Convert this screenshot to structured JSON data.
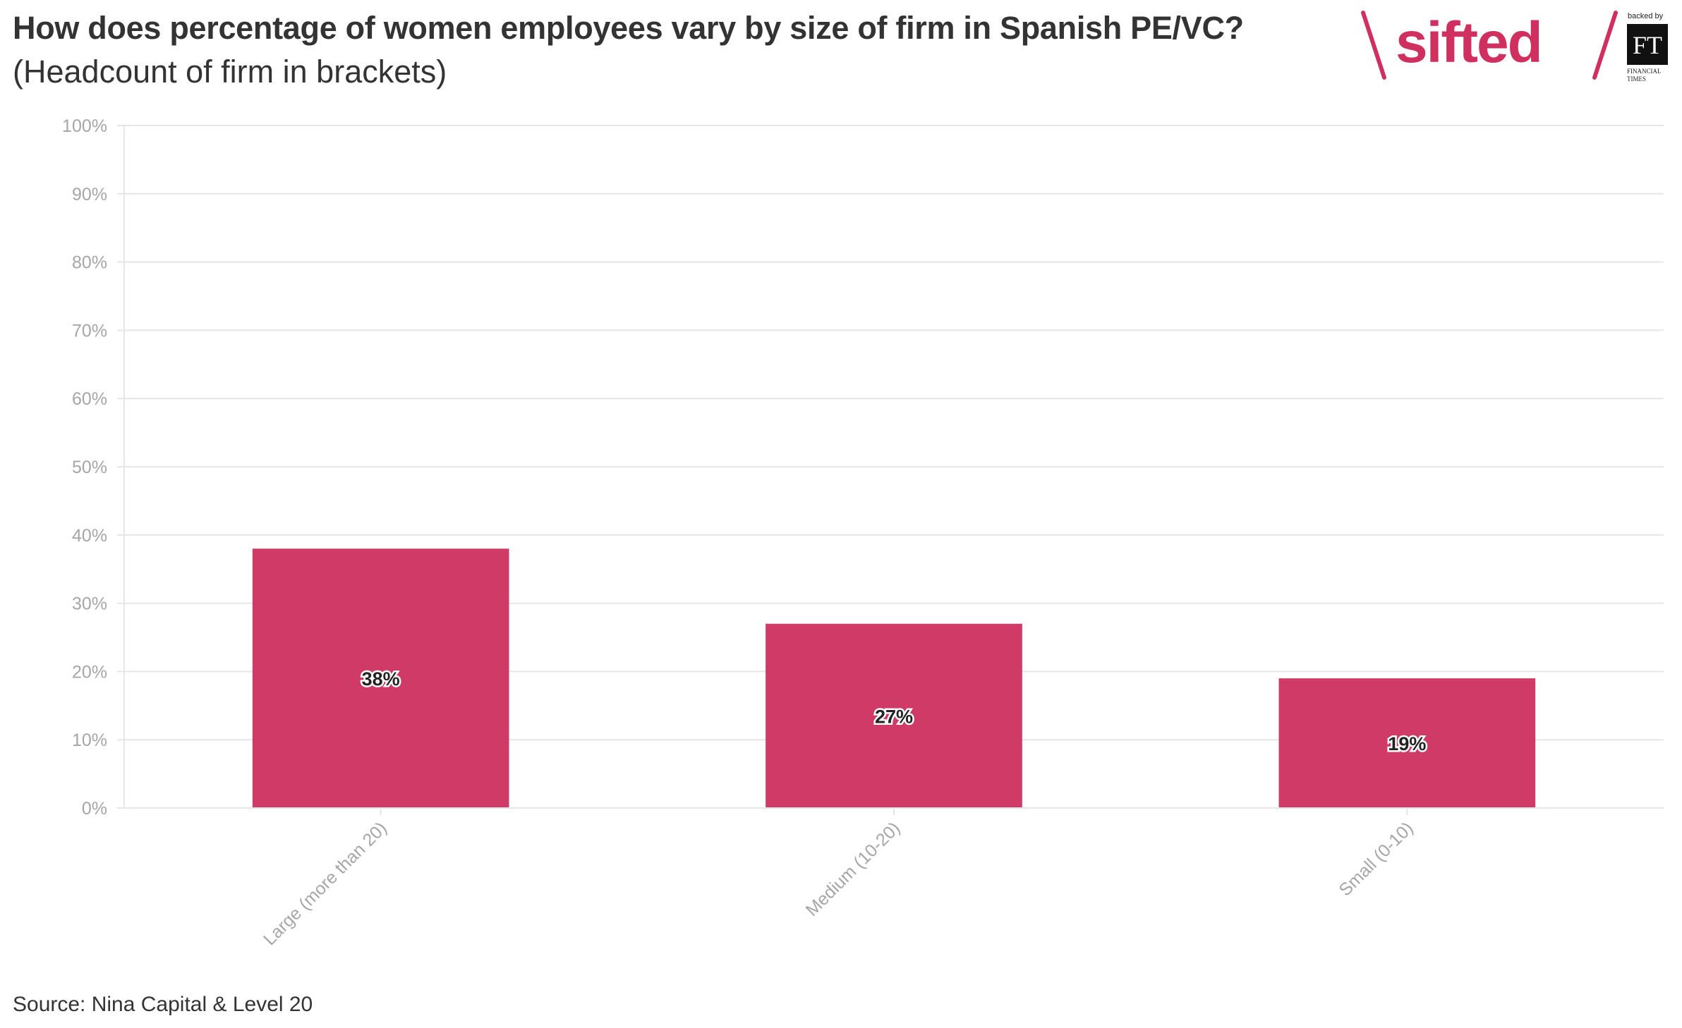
{
  "header": {
    "title": "How does percentage of women employees vary by size of firm in Spanish PE/VC?",
    "subtitle": "(Headcount of firm in brackets)"
  },
  "logo": {
    "brand": "sifted",
    "backed_by": "backed by",
    "ft_mark": "FT",
    "ft_line1": "FINANCIAL",
    "ft_line2": "TIMES",
    "brand_color": "#d0305f"
  },
  "footer": {
    "source": "Source: Nina Capital & Level 20"
  },
  "colors": {
    "bar": "#cf3b66",
    "grid": "#e6e6e6",
    "axis_text": "#a6a6a6"
  },
  "chart_data": {
    "type": "bar",
    "title": "How does percentage of women employees vary by size of firm in Spanish PE/VC?",
    "subtitle": "(Headcount of firm in brackets)",
    "categories": [
      "Large (more than 20)",
      "Medium (10-20)",
      "Small (0-10)"
    ],
    "values": [
      38,
      27,
      19
    ],
    "data_labels": [
      "38%",
      "27%",
      "19%"
    ],
    "ylim": [
      0,
      100
    ],
    "yticks": [
      0,
      10,
      20,
      30,
      40,
      50,
      60,
      70,
      80,
      90,
      100
    ],
    "ytick_labels": [
      "0%",
      "10%",
      "20%",
      "30%",
      "40%",
      "50%",
      "60%",
      "70%",
      "80%",
      "90%",
      "100%"
    ],
    "xlabel": "",
    "ylabel": "",
    "grid": true,
    "legend": "none"
  }
}
